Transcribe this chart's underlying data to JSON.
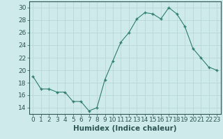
{
  "x": [
    0,
    1,
    2,
    3,
    4,
    5,
    6,
    7,
    8,
    9,
    10,
    11,
    12,
    13,
    14,
    15,
    16,
    17,
    18,
    19,
    20,
    21,
    22,
    23
  ],
  "y": [
    19,
    17,
    17,
    16.5,
    16.5,
    15,
    15,
    13.5,
    14,
    18.5,
    21.5,
    24.5,
    26,
    28.2,
    29.2,
    29,
    28.2,
    30,
    29,
    27,
    23.5,
    22,
    20.5,
    20
  ],
  "line_color": "#2e7d6e",
  "marker_color": "#2e7d6e",
  "bg_color": "#ceeaea",
  "grid_color": "#b8d8d8",
  "xlabel": "Humidex (Indice chaleur)",
  "xlim": [
    -0.5,
    23.5
  ],
  "ylim": [
    13,
    31
  ],
  "yticks": [
    14,
    16,
    18,
    20,
    22,
    24,
    26,
    28,
    30
  ],
  "xtick_labels": [
    "0",
    "1",
    "2",
    "3",
    "4",
    "5",
    "6",
    "7",
    "8",
    "9",
    "10",
    "11",
    "12",
    "13",
    "14",
    "15",
    "16",
    "17",
    "18",
    "19",
    "20",
    "21",
    "22",
    "23"
  ],
  "xlabel_fontsize": 7.5,
  "tick_fontsize": 6.5
}
